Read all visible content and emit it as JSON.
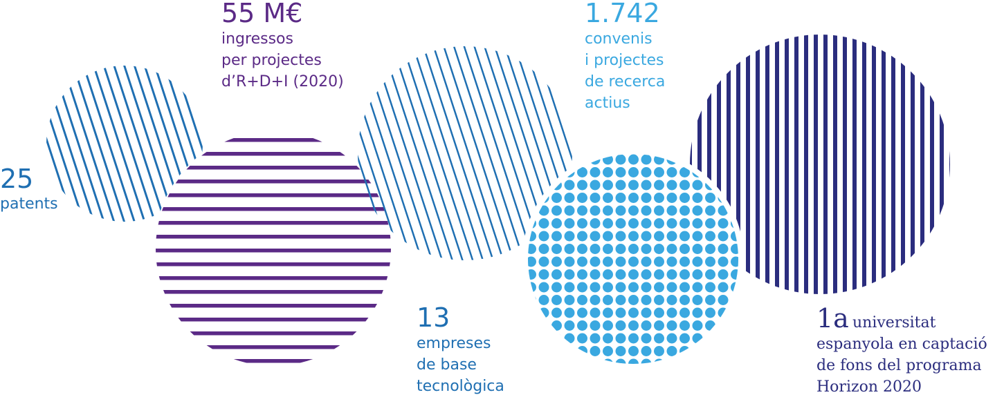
{
  "items": [
    {
      "value": "25",
      "lines": [
        "patents"
      ]
    },
    {
      "value": "55 M€",
      "lines": [
        "ingressos",
        "per projectes",
        "d’R+D+I (2020)"
      ]
    },
    {
      "value": "1.742",
      "lines": [
        "convenis",
        "i projectes",
        "de recerca",
        "actius"
      ]
    },
    {
      "value": "13",
      "lines": [
        "empreses",
        "de base",
        "tecnològica"
      ]
    },
    {
      "value": "1a",
      "lines": [
        "universitat",
        "espanyola en captació",
        "de fons del programa",
        "Horizon 2020"
      ]
    }
  ]
}
